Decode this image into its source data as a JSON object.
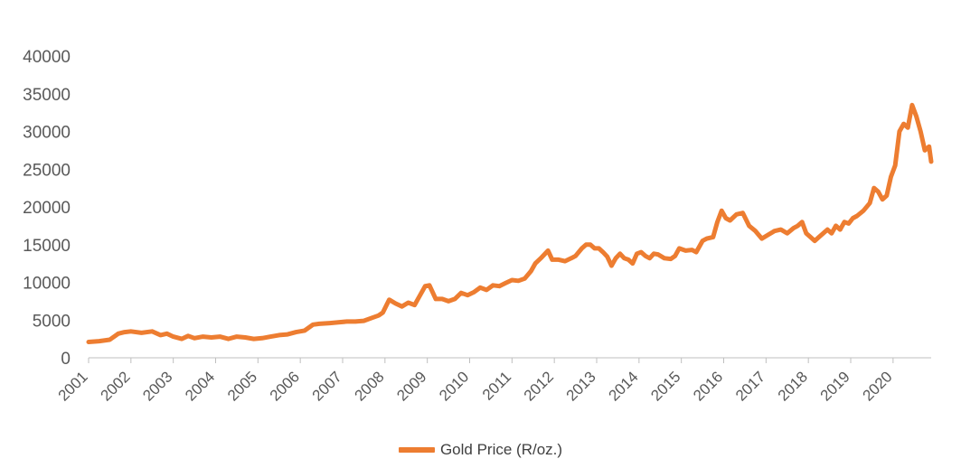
{
  "chart_data": {
    "type": "line",
    "title": "",
    "xlabel": "",
    "ylabel": "",
    "ylim": [
      0,
      40000
    ],
    "yticks": [
      0,
      5000,
      10000,
      15000,
      20000,
      25000,
      30000,
      35000,
      40000
    ],
    "xticks": [
      "2001",
      "2002",
      "2003",
      "2004",
      "2005",
      "2006",
      "2007",
      "2008",
      "2009",
      "2010",
      "2011",
      "2012",
      "2013",
      "2014",
      "2015",
      "2016",
      "2017",
      "2018",
      "2019",
      "2020"
    ],
    "xlim": [
      2001,
      2020.9
    ],
    "grid": false,
    "legend_position": "bottom",
    "color": "#ED7D31",
    "series": [
      {
        "name": "Gold Price (R/oz.)",
        "x": [
          2001.0,
          2001.25,
          2001.5,
          2001.7,
          2001.85,
          2002.0,
          2002.25,
          2002.5,
          2002.7,
          2002.85,
          2003.0,
          2003.2,
          2003.35,
          2003.5,
          2003.7,
          2003.9,
          2004.1,
          2004.3,
          2004.5,
          2004.7,
          2004.9,
          2005.1,
          2005.3,
          2005.5,
          2005.7,
          2005.9,
          2006.1,
          2006.3,
          2006.45,
          2006.7,
          2006.9,
          2007.1,
          2007.3,
          2007.5,
          2007.7,
          2007.85,
          2007.95,
          2008.1,
          2008.25,
          2008.4,
          2008.55,
          2008.7,
          2008.8,
          2008.95,
          2009.05,
          2009.2,
          2009.35,
          2009.5,
          2009.65,
          2009.8,
          2009.95,
          2010.1,
          2010.25,
          2010.4,
          2010.55,
          2010.7,
          2010.85,
          2011.0,
          2011.15,
          2011.3,
          2011.45,
          2011.55,
          2011.7,
          2011.85,
          2011.95,
          2012.1,
          2012.25,
          2012.4,
          2012.5,
          2012.65,
          2012.75,
          2012.85,
          2012.95,
          2013.05,
          2013.15,
          2013.25,
          2013.35,
          2013.45,
          2013.55,
          2013.65,
          2013.75,
          2013.85,
          2013.95,
          2014.05,
          2014.15,
          2014.25,
          2014.35,
          2014.45,
          2014.6,
          2014.75,
          2014.85,
          2014.95,
          2015.1,
          2015.25,
          2015.35,
          2015.5,
          2015.6,
          2015.75,
          2015.85,
          2015.95,
          2016.05,
          2016.15,
          2016.3,
          2016.45,
          2016.6,
          2016.75,
          2016.9,
          2017.05,
          2017.2,
          2017.35,
          2017.5,
          2017.65,
          2017.75,
          2017.85,
          2017.95,
          2018.05,
          2018.15,
          2018.25,
          2018.35,
          2018.45,
          2018.55,
          2018.65,
          2018.75,
          2018.85,
          2018.95,
          2019.05,
          2019.15,
          2019.3,
          2019.45,
          2019.55,
          2019.65,
          2019.75,
          2019.85,
          2019.95,
          2020.05,
          2020.15,
          2020.25,
          2020.35,
          2020.45,
          2020.55,
          2020.65,
          2020.75,
          2020.85,
          2020.9
        ],
        "values": [
          2100,
          2200,
          2400,
          3200,
          3400,
          3500,
          3300,
          3500,
          3000,
          3200,
          2800,
          2500,
          2900,
          2600,
          2800,
          2700,
          2800,
          2500,
          2800,
          2700,
          2500,
          2600,
          2800,
          3000,
          3100,
          3400,
          3600,
          4400,
          4500,
          4600,
          4700,
          4800,
          4800,
          4900,
          5300,
          5600,
          6000,
          7700,
          7200,
          6800,
          7300,
          7000,
          8000,
          9500,
          9600,
          7800,
          7800,
          7500,
          7800,
          8600,
          8300,
          8700,
          9300,
          9000,
          9600,
          9500,
          9900,
          10300,
          10200,
          10500,
          11500,
          12500,
          13300,
          14200,
          13000,
          13000,
          12800,
          13200,
          13500,
          14500,
          15000,
          15000,
          14500,
          14500,
          14000,
          13400,
          12200,
          13200,
          13800,
          13200,
          13000,
          12500,
          13800,
          14000,
          13500,
          13200,
          13800,
          13700,
          13200,
          13100,
          13500,
          14500,
          14200,
          14300,
          14000,
          15500,
          15800,
          16000,
          18000,
          19500,
          18500,
          18200,
          19000,
          19200,
          17500,
          16800,
          15800,
          16300,
          16800,
          17000,
          16500,
          17200,
          17500,
          18000,
          16500,
          16000,
          15500,
          16000,
          16500,
          17000,
          16500,
          17500,
          17000,
          18000,
          17800,
          18500,
          18800,
          19500,
          20500,
          22500,
          22000,
          21000,
          21500,
          24000,
          25500,
          30000,
          31000,
          30500,
          33500,
          32000,
          30000,
          27500,
          28000,
          26000
        ]
      }
    ]
  }
}
